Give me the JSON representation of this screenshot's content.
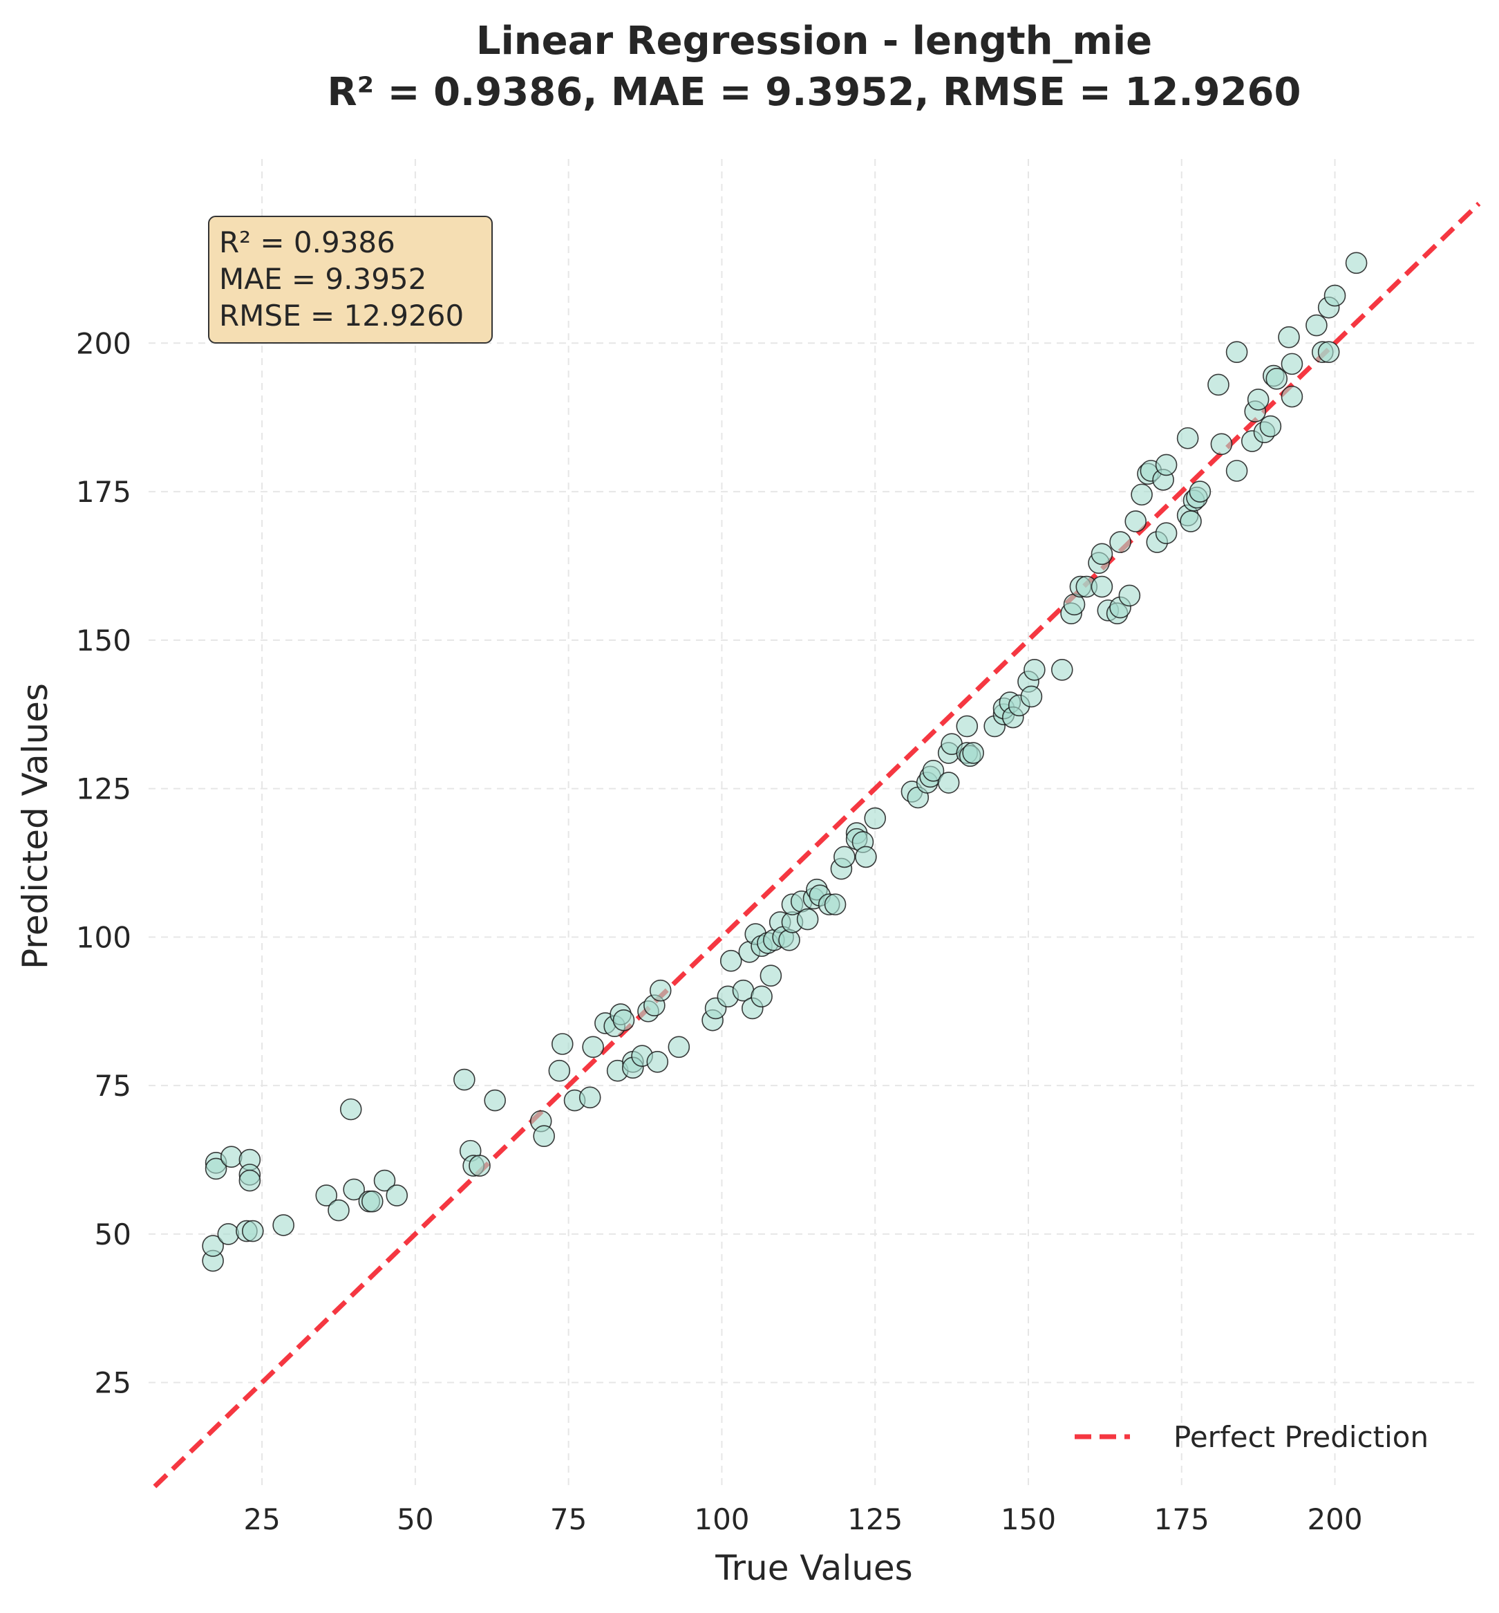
{
  "chart_data": {
    "type": "scatter",
    "title": "Linear Regression - length_mie",
    "subtitle": "R² = 0.9386, MAE = 9.3952, RMSE = 12.9260",
    "xlabel": "True Values",
    "ylabel": "Predicted Values",
    "xlim": [
      6.5,
      223.5
    ],
    "ylim": [
      7.5,
      231.0
    ],
    "xticks": [
      25,
      50,
      75,
      100,
      125,
      150,
      175,
      200
    ],
    "yticks": [
      25,
      50,
      75,
      100,
      125,
      150,
      175,
      200
    ],
    "grid": true,
    "stats_box": [
      "R² = 0.9386",
      "MAE = 9.3952",
      "RMSE = 12.9260"
    ],
    "legend": {
      "placement": "lower-right",
      "entries": [
        "Perfect Prediction"
      ]
    },
    "colors": {
      "points": "#a6dccf",
      "point_edge": "#1a1a1a",
      "perfect_line": "#f5222d",
      "box_fill": "#f5deb3",
      "grid": "#e6e6e6"
    },
    "reference_line": {
      "name": "Perfect Prediction",
      "slope": 1,
      "intercept": 0
    },
    "points": [
      [
        17,
        45.5
      ],
      [
        17,
        48
      ],
      [
        17.5,
        62
      ],
      [
        17.5,
        61
      ],
      [
        19.5,
        50
      ],
      [
        20,
        63
      ],
      [
        22.5,
        50.5
      ],
      [
        23,
        62.5
      ],
      [
        23,
        60
      ],
      [
        23,
        59
      ],
      [
        23.5,
        50.5
      ],
      [
        28.5,
        51.5
      ],
      [
        35.5,
        56.5
      ],
      [
        37.5,
        54
      ],
      [
        39.5,
        71
      ],
      [
        40,
        57.5
      ],
      [
        42.5,
        55.5
      ],
      [
        43,
        55.5
      ],
      [
        45,
        59
      ],
      [
        47,
        56.5
      ],
      [
        58,
        76
      ],
      [
        59,
        64
      ],
      [
        59.5,
        61.5
      ],
      [
        60.5,
        61.5
      ],
      [
        63,
        72.5
      ],
      [
        70.5,
        69
      ],
      [
        71,
        66.5
      ],
      [
        73.5,
        77.5
      ],
      [
        74,
        82
      ],
      [
        76,
        72.5
      ],
      [
        78.5,
        73
      ],
      [
        79,
        81.5
      ],
      [
        81,
        85.5
      ],
      [
        82.5,
        85
      ],
      [
        83,
        77.5
      ],
      [
        83.5,
        87
      ],
      [
        84,
        86
      ],
      [
        85.5,
        79
      ],
      [
        85.5,
        78
      ],
      [
        87,
        80
      ],
      [
        88,
        87.5
      ],
      [
        89,
        88.5
      ],
      [
        89.5,
        79
      ],
      [
        90,
        91
      ],
      [
        93,
        81.5
      ],
      [
        98.5,
        86
      ],
      [
        99,
        88
      ],
      [
        101,
        90
      ],
      [
        101.5,
        96
      ],
      [
        103.5,
        91
      ],
      [
        104.5,
        97.5
      ],
      [
        105,
        88
      ],
      [
        105.5,
        100.5
      ],
      [
        106.5,
        98.5
      ],
      [
        106.5,
        90
      ],
      [
        107.5,
        99
      ],
      [
        108,
        93.5
      ],
      [
        108.5,
        99.5
      ],
      [
        109.5,
        102.5
      ],
      [
        110,
        100
      ],
      [
        111,
        99.5
      ],
      [
        111.5,
        102.5
      ],
      [
        111.5,
        105.5
      ],
      [
        113,
        106
      ],
      [
        114,
        103
      ],
      [
        115,
        106.5
      ],
      [
        115.5,
        108
      ],
      [
        116,
        107
      ],
      [
        117.5,
        105.5
      ],
      [
        118.5,
        105.5
      ],
      [
        119.5,
        111.5
      ],
      [
        120,
        113.5
      ],
      [
        122,
        117.5
      ],
      [
        122,
        116.5
      ],
      [
        123,
        116
      ],
      [
        123.5,
        113.5
      ],
      [
        125,
        120
      ],
      [
        131,
        124.5
      ],
      [
        132,
        123.5
      ],
      [
        133.5,
        126
      ],
      [
        134,
        127
      ],
      [
        134.5,
        128
      ],
      [
        137,
        131
      ],
      [
        137,
        126
      ],
      [
        137.5,
        132.5
      ],
      [
        140,
        135.5
      ],
      [
        140,
        131
      ],
      [
        140.5,
        130.5
      ],
      [
        141,
        131
      ],
      [
        144.5,
        135.5
      ],
      [
        146,
        137.5
      ],
      [
        146,
        138.5
      ],
      [
        147,
        139.5
      ],
      [
        147.5,
        137
      ],
      [
        148.5,
        139
      ],
      [
        150,
        143
      ],
      [
        150.5,
        140.5
      ],
      [
        151,
        145
      ],
      [
        155.5,
        145
      ],
      [
        157,
        154.5
      ],
      [
        157.5,
        156
      ],
      [
        158.5,
        159
      ],
      [
        159.5,
        159
      ],
      [
        161.5,
        163
      ],
      [
        162,
        159
      ],
      [
        162,
        164.5
      ],
      [
        163,
        155
      ],
      [
        164.5,
        154.5
      ],
      [
        165,
        155.5
      ],
      [
        165,
        166.5
      ],
      [
        166.5,
        157.5
      ],
      [
        167.5,
        170
      ],
      [
        168.5,
        174.5
      ],
      [
        169.5,
        178
      ],
      [
        170,
        178.5
      ],
      [
        171,
        166.5
      ],
      [
        172,
        177
      ],
      [
        172.5,
        168
      ],
      [
        172.5,
        179.5
      ],
      [
        176,
        171
      ],
      [
        176,
        184
      ],
      [
        176.5,
        170
      ],
      [
        177,
        173.5
      ],
      [
        177.5,
        174
      ],
      [
        178,
        175
      ],
      [
        181,
        193
      ],
      [
        181.5,
        183
      ],
      [
        184,
        198.5
      ],
      [
        184,
        178.5
      ],
      [
        186.5,
        183.5
      ],
      [
        187,
        188.5
      ],
      [
        187.5,
        190.5
      ],
      [
        188.5,
        185
      ],
      [
        189.5,
        186
      ],
      [
        190,
        194.5
      ],
      [
        190.5,
        194
      ],
      [
        192.5,
        201
      ],
      [
        193,
        191
      ],
      [
        193,
        196.5
      ],
      [
        197,
        203
      ],
      [
        198,
        198.5
      ],
      [
        199,
        198.5
      ],
      [
        199,
        206
      ],
      [
        200,
        208
      ],
      [
        203.5,
        213.5
      ]
    ]
  }
}
